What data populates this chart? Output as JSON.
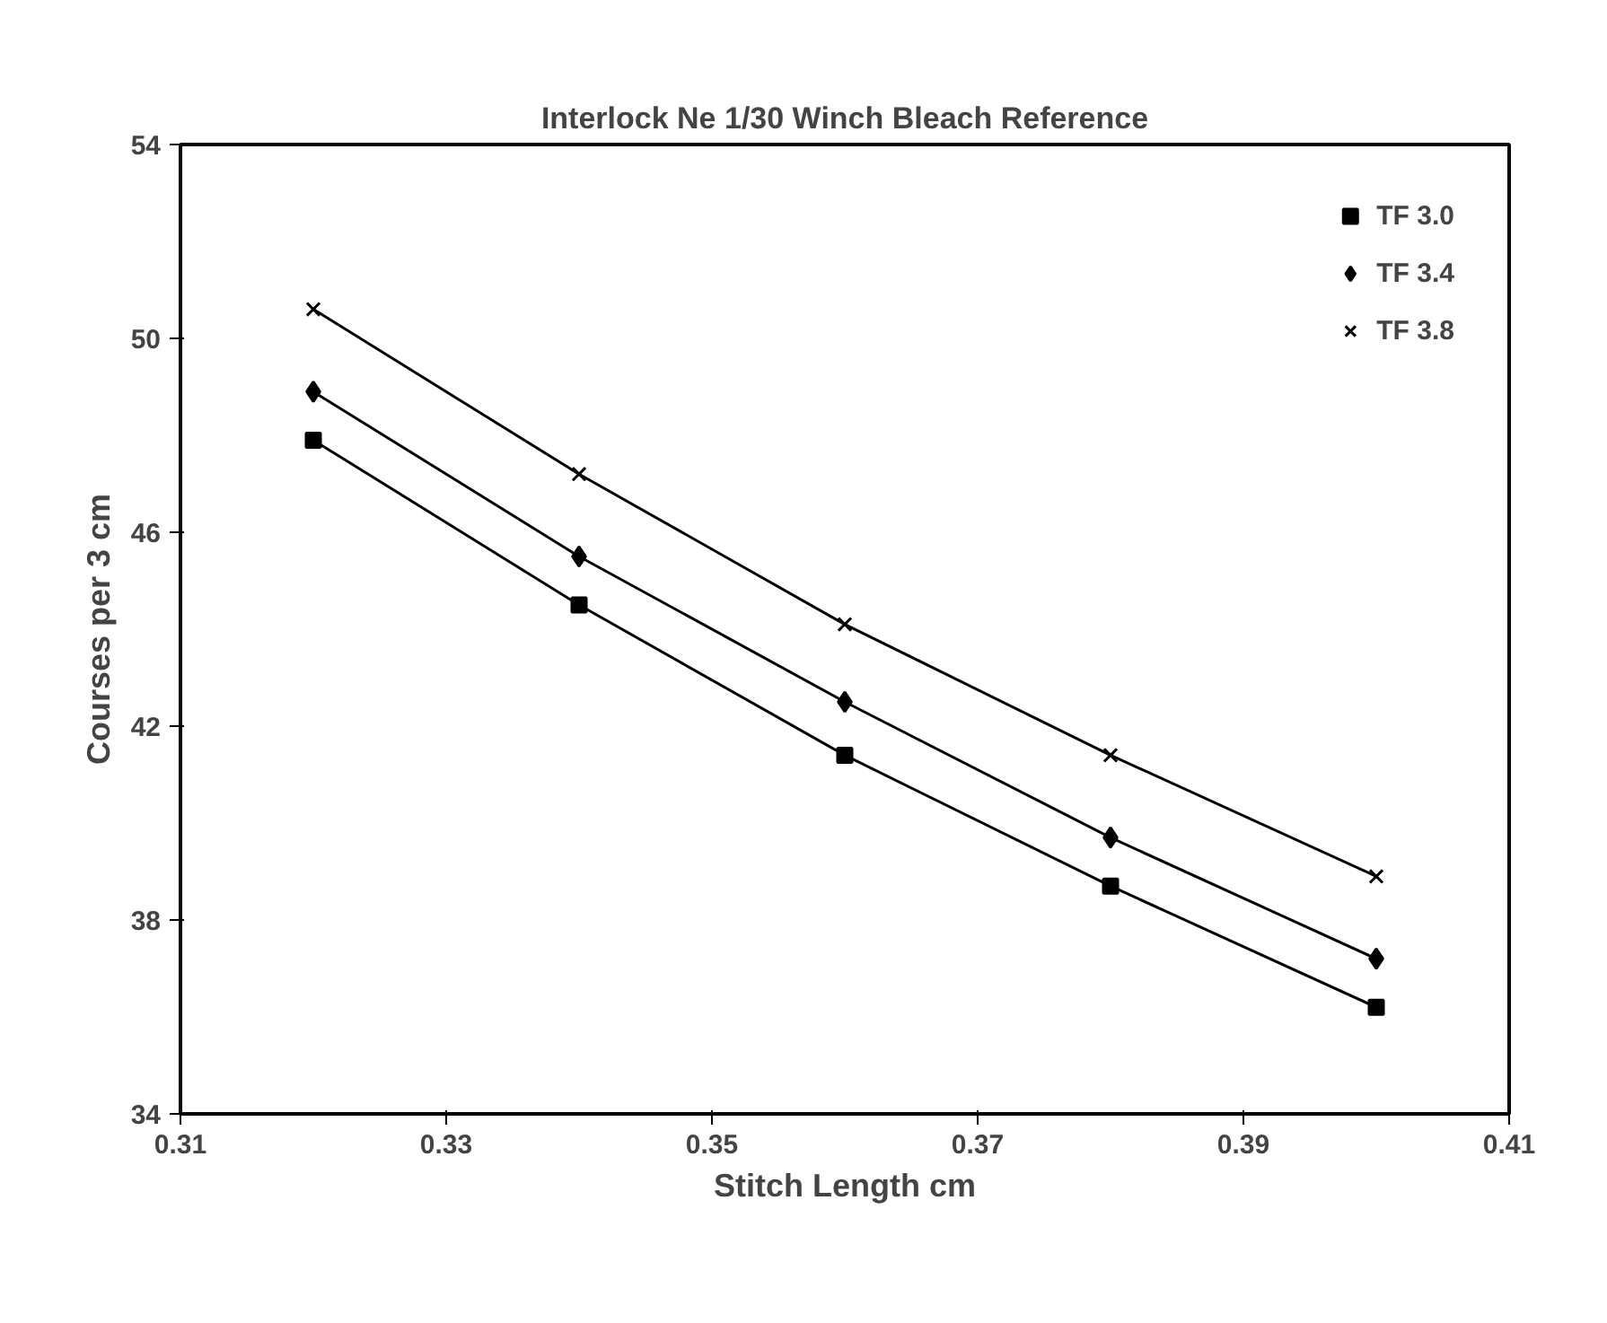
{
  "chart_data": {
    "type": "line",
    "title": "Interlock Ne 1/30 Winch Bleach Reference",
    "xlabel": "Stitch Length cm",
    "ylabel": "Courses per 3 cm",
    "x": [
      0.32,
      0.34,
      0.36,
      0.38,
      0.4
    ],
    "series": [
      {
        "name": "TF 3.0",
        "color": "#000000",
        "marker": "square",
        "values": [
          47.9,
          44.5,
          41.4,
          38.7,
          36.2
        ]
      },
      {
        "name": "TF 3.4",
        "color": "#000000",
        "marker": "diamond",
        "values": [
          48.9,
          45.5,
          42.5,
          39.7,
          37.2
        ]
      },
      {
        "name": "TF 3.8",
        "color": "#000000",
        "marker": "cross",
        "values": [
          50.6,
          47.2,
          44.1,
          41.4,
          38.9
        ]
      }
    ],
    "xlim": [
      0.31,
      0.41
    ],
    "xticks": [
      0.31,
      0.33,
      0.35,
      0.37,
      0.39,
      0.41
    ],
    "ylim": [
      34,
      54
    ],
    "yticks": [
      34,
      38,
      42,
      46,
      50,
      54
    ],
    "grid": false,
    "legend": "top right",
    "line_style": "solid"
  }
}
